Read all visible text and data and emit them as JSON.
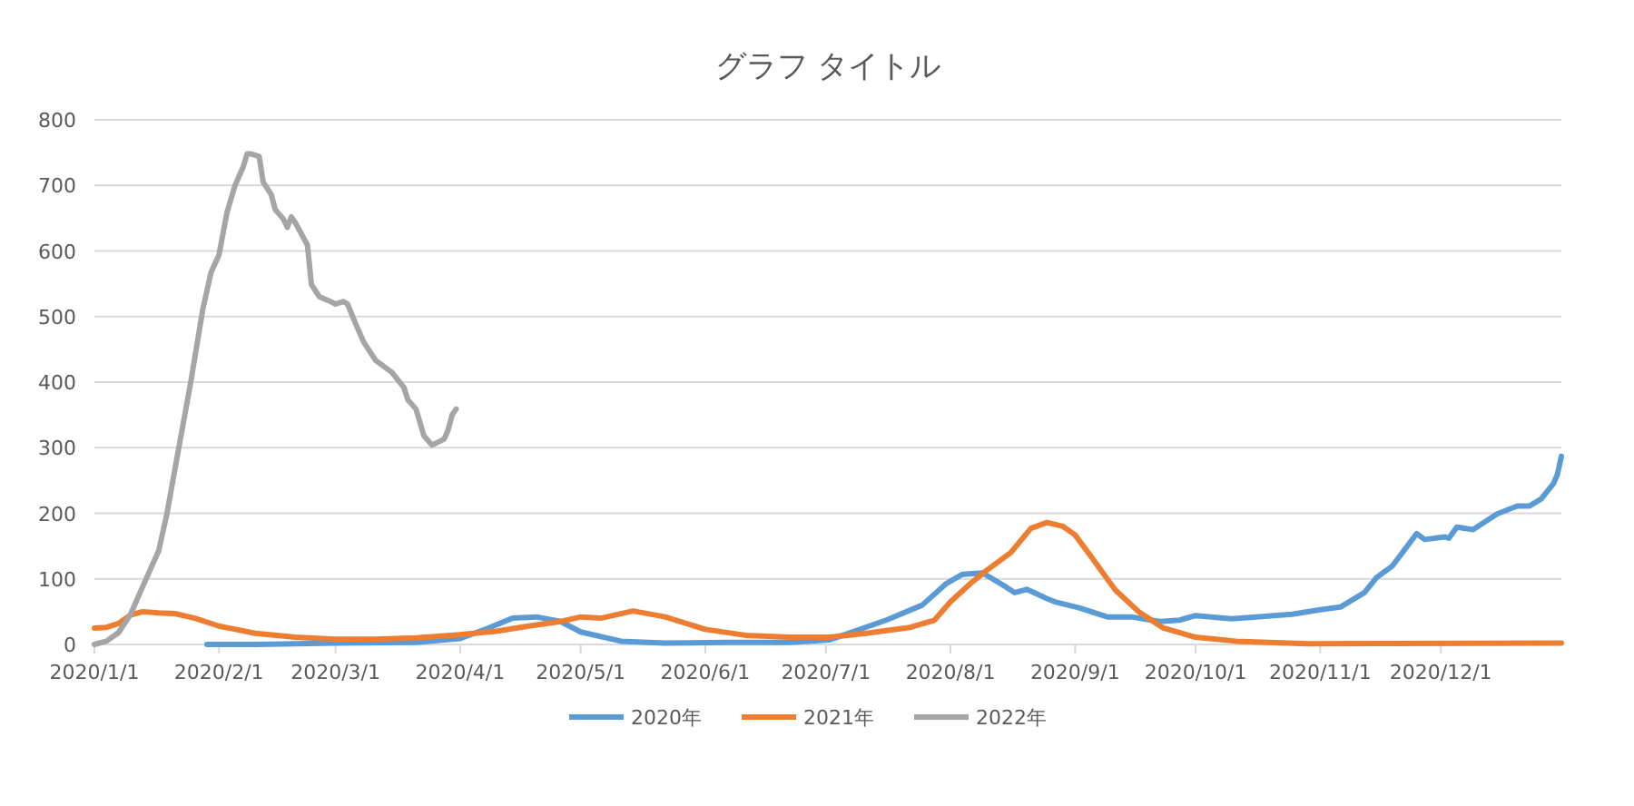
{
  "chart_data": {
    "type": "line",
    "title": "グラフ タイトル",
    "xlim": [
      "2020-01-01",
      "2020-12-31"
    ],
    "xticks": [
      {
        "value": "2020-01-01",
        "label": "2020/1/1"
      },
      {
        "value": "2020-02-01",
        "label": "2020/2/1"
      },
      {
        "value": "2020-03-01",
        "label": "2020/3/1"
      },
      {
        "value": "2020-04-01",
        "label": "2020/4/1"
      },
      {
        "value": "2020-05-01",
        "label": "2020/5/1"
      },
      {
        "value": "2020-06-01",
        "label": "2020/6/1"
      },
      {
        "value": "2020-07-01",
        "label": "2020/7/1"
      },
      {
        "value": "2020-08-01",
        "label": "2020/8/1"
      },
      {
        "value": "2020-09-01",
        "label": "2020/9/1"
      },
      {
        "value": "2020-10-01",
        "label": "2020/10/1"
      },
      {
        "value": "2020-11-01",
        "label": "2020/11/1"
      },
      {
        "value": "2020-12-01",
        "label": "2020/12/1"
      }
    ],
    "ylim": [
      0,
      800
    ],
    "yticks": [
      0,
      100,
      200,
      300,
      400,
      500,
      600,
      700,
      800
    ],
    "grid": "y",
    "legend": "bottom",
    "marker": "none",
    "line_style": "solid",
    "series": [
      {
        "name": "2020年",
        "color": "#5b9bd5",
        "x": [
          "2020-01-29",
          "2020-02-10",
          "2020-03-01",
          "2020-03-21",
          "2020-04-01",
          "2020-04-08",
          "2020-04-14",
          "2020-04-20",
          "2020-04-26",
          "2020-05-01",
          "2020-05-11",
          "2020-05-22",
          "2020-06-06",
          "2020-06-22",
          "2020-07-02",
          "2020-07-16",
          "2020-07-25",
          "2020-07-31",
          "2020-08-04",
          "2020-08-09",
          "2020-08-15",
          "2020-08-17",
          "2020-08-20",
          "2020-08-25",
          "2020-08-27",
          "2020-09-02",
          "2020-09-09",
          "2020-09-15",
          "2020-09-22",
          "2020-09-27",
          "2020-10-01",
          "2020-10-10",
          "2020-10-16",
          "2020-10-25",
          "2020-11-01",
          "2020-11-06",
          "2020-11-12",
          "2020-11-15",
          "2020-11-19",
          "2020-11-25",
          "2020-11-27",
          "2020-12-02",
          "2020-12-03",
          "2020-12-05",
          "2020-12-09",
          "2020-12-15",
          "2020-12-20",
          "2020-12-23",
          "2020-12-26",
          "2020-12-29",
          "2020-12-30",
          "2020-12-31"
        ],
        "values": [
          0,
          0,
          2,
          3,
          9,
          25,
          40,
          42,
          35,
          19,
          5,
          2,
          3,
          3,
          7,
          37,
          60,
          93,
          107,
          109,
          87,
          79,
          84,
          70,
          65,
          56,
          42,
          42,
          35,
          37,
          44,
          39,
          42,
          46,
          53,
          57,
          79,
          102,
          120,
          169,
          160,
          164,
          162,
          179,
          175,
          199,
          211,
          211,
          222,
          245,
          259,
          287
        ]
      },
      {
        "name": "2021年",
        "color": "#ed7d31",
        "x": [
          "2020-01-01",
          "2020-01-04",
          "2020-01-07",
          "2020-01-10",
          "2020-01-13",
          "2020-01-17",
          "2020-01-21",
          "2020-01-26",
          "2020-02-01",
          "2020-02-10",
          "2020-02-20",
          "2020-03-01",
          "2020-03-11",
          "2020-03-21",
          "2020-04-01",
          "2020-04-10",
          "2020-04-18",
          "2020-04-26",
          "2020-05-01",
          "2020-05-06",
          "2020-05-14",
          "2020-05-22",
          "2020-06-01",
          "2020-06-11",
          "2020-06-22",
          "2020-07-02",
          "2020-07-11",
          "2020-07-22",
          "2020-07-28",
          "2020-08-01",
          "2020-08-06",
          "2020-08-10",
          "2020-08-16",
          "2020-08-21",
          "2020-08-25",
          "2020-08-29",
          "2020-09-01",
          "2020-09-05",
          "2020-09-11",
          "2020-09-17",
          "2020-09-23",
          "2020-10-01",
          "2020-10-11",
          "2020-10-29",
          "2020-12-31"
        ],
        "values": [
          25,
          26,
          32,
          45,
          50,
          48,
          47,
          40,
          28,
          17,
          11,
          8,
          8,
          10,
          15,
          20,
          28,
          35,
          42,
          40,
          51,
          42,
          23,
          14,
          11,
          11,
          17,
          26,
          37,
          65,
          93,
          113,
          140,
          177,
          186,
          180,
          167,
          134,
          83,
          49,
          25,
          11,
          5,
          1,
          2
        ]
      },
      {
        "name": "2022年",
        "color": "#a5a5a5",
        "x": [
          "2020-01-01",
          "2020-01-04",
          "2020-01-07",
          "2020-01-10",
          "2020-01-13",
          "2020-01-17",
          "2020-01-19",
          "2020-01-22",
          "2020-01-25",
          "2020-01-28",
          "2020-01-30",
          "2020-02-01",
          "2020-02-03",
          "2020-02-05",
          "2020-02-07",
          "2020-02-08",
          "2020-02-09",
          "2020-02-11",
          "2020-02-12",
          "2020-02-14",
          "2020-02-15",
          "2020-02-17",
          "2020-02-18",
          "2020-02-19",
          "2020-02-20",
          "2020-02-23",
          "2020-02-24",
          "2020-02-26",
          "2020-02-28",
          "2020-03-01",
          "2020-03-03",
          "2020-03-04",
          "2020-03-06",
          "2020-03-08",
          "2020-03-11",
          "2020-03-15",
          "2020-03-18",
          "2020-03-19",
          "2020-03-21",
          "2020-03-23",
          "2020-03-25",
          "2020-03-28",
          "2020-03-29",
          "2020-03-30",
          "2020-03-31"
        ],
        "values": [
          0,
          5,
          18,
          46,
          88,
          143,
          198,
          300,
          401,
          512,
          567,
          594,
          659,
          700,
          728,
          748,
          748,
          744,
          705,
          686,
          663,
          649,
          636,
          652,
          643,
          609,
          549,
          530,
          525,
          519,
          523,
          519,
          489,
          461,
          433,
          415,
          392,
          373,
          359,
          318,
          304,
          313,
          327,
          350,
          359
        ]
      }
    ]
  }
}
